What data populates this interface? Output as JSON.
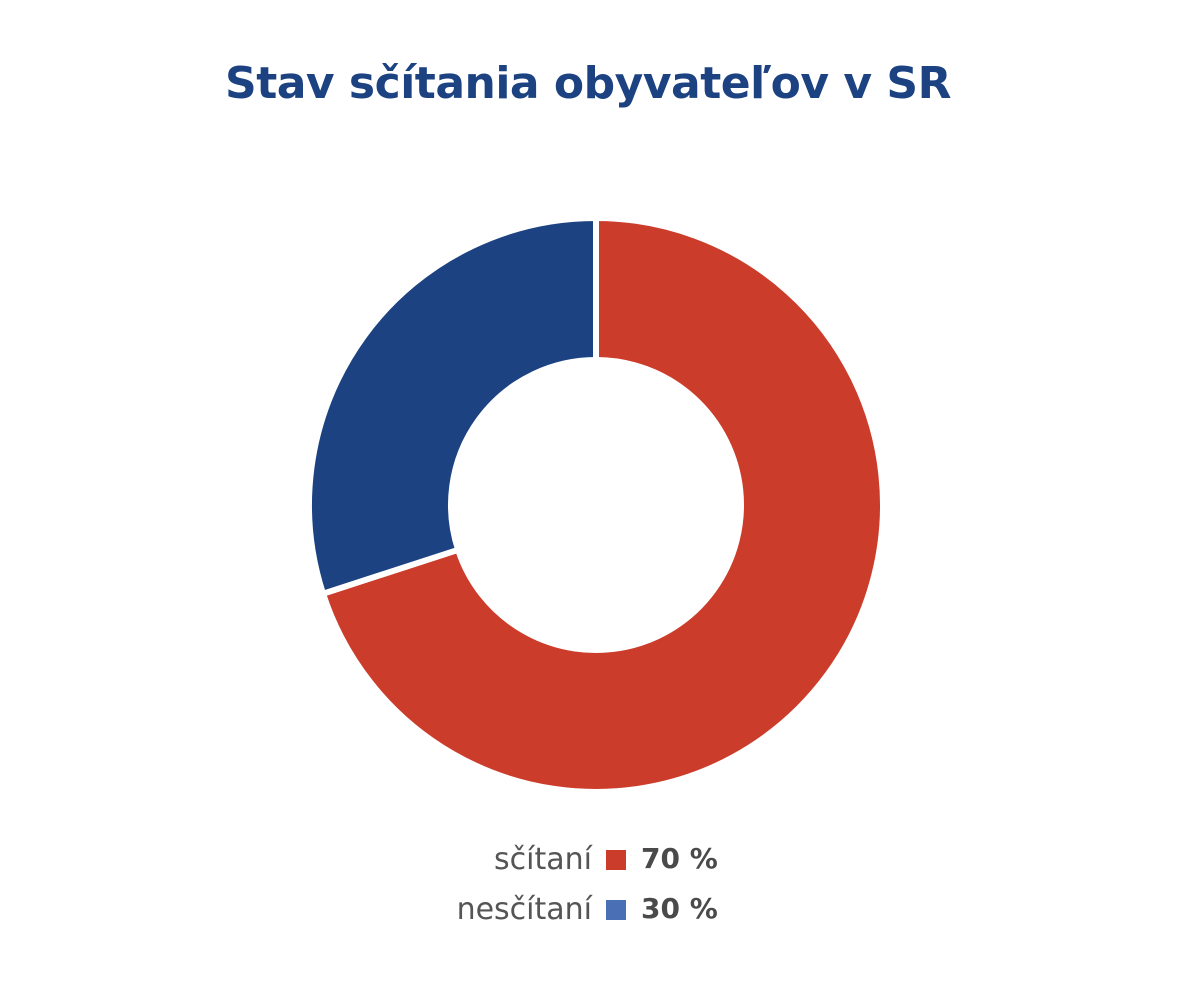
{
  "chart_data": {
    "type": "pie",
    "style": "donut",
    "title": "Stav sčítania obyvateľov v SR",
    "categories": [
      "sčítaní",
      "nesčítaní"
    ],
    "values": [
      70,
      30
    ],
    "value_labels": [
      "70 %",
      "30 %"
    ],
    "colors": [
      "#cc3c2b",
      "#1c4282"
    ],
    "legend_colors": [
      "#cc3c2b",
      "#4a6fb5"
    ],
    "legend_position": "bottom",
    "start": "top, clockwise"
  }
}
